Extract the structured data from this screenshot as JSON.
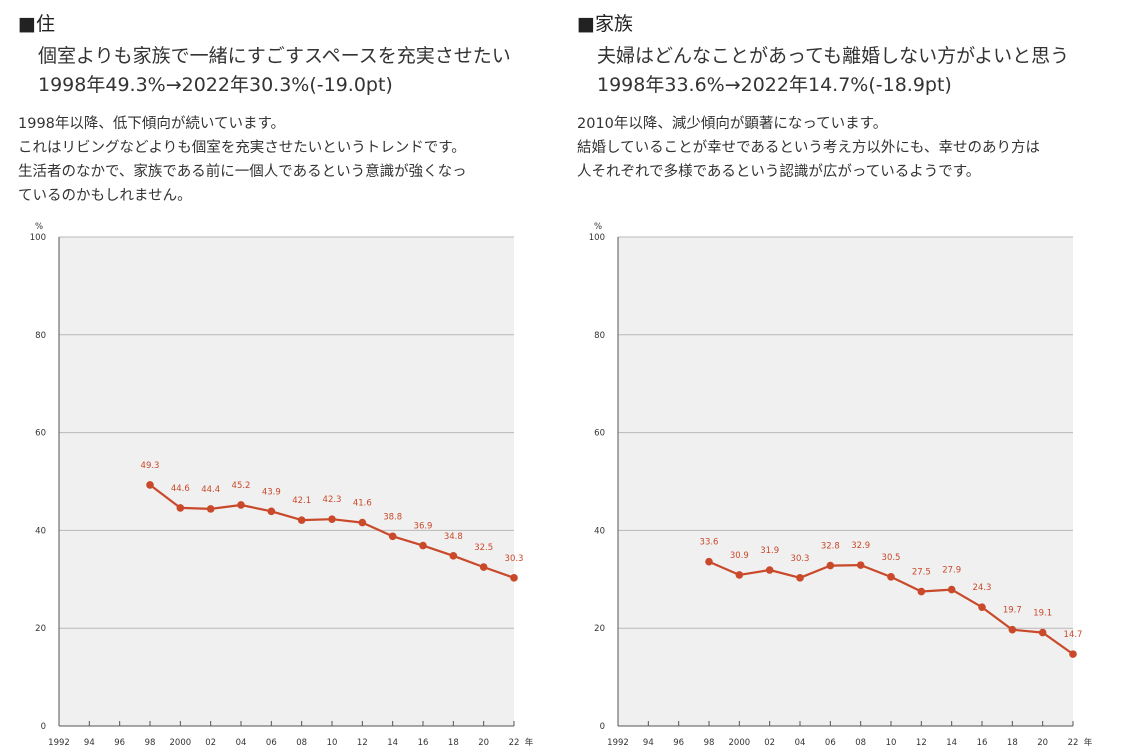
{
  "panels": [
    {
      "heading": "■住",
      "headline1": "個室よりも家族で一緒にすごすスペースを充実させたい",
      "headline2": "1998年49.3%→2022年30.3%(-19.0pt)",
      "description": [
        "1998年以降、低下傾向が続いています。",
        "これはリビングなどよりも個室を充実させたいというトレンドです。",
        "生活者のなかで、家族である前に一個人であるという意識が強くなっ",
        "ているのかもしれません。"
      ]
    },
    {
      "heading": "■家族",
      "headline1": "夫婦はどんなことがあっても離婚しない方がよいと思う",
      "headline2": "1998年33.6%→2022年14.7%(-18.9pt)",
      "description": [
        "2010年以降、減少傾向が顕著になっています。",
        "結婚していることが幸せであるという考え方以外にも、幸せのあり方は",
        "人それぞれで多様であるという認識が広がっているようです。"
      ]
    }
  ],
  "colors": {
    "line": "#c9492a",
    "plot_bg": "#f0f0f0",
    "grid": "#b8b8b8"
  },
  "chart_data": [
    {
      "type": "line",
      "title": "",
      "xlabel": "年",
      "ylabel": "%",
      "ylim": [
        0,
        100
      ],
      "yticks": [
        0,
        20,
        40,
        60,
        80,
        100
      ],
      "xlim": [
        1992,
        2022
      ],
      "xtick_values": [
        1992,
        1994,
        1996,
        1998,
        2000,
        2002,
        2004,
        2006,
        2008,
        2010,
        2012,
        2014,
        2016,
        2018,
        2020,
        2022
      ],
      "xtick_labels": [
        "1992",
        "94",
        "96",
        "98",
        "2000",
        "02",
        "04",
        "06",
        "08",
        "10",
        "12",
        "14",
        "16",
        "18",
        "20",
        "22"
      ],
      "x_unit_label": "年",
      "grid": true,
      "series": [
        {
          "x": [
            1998,
            2000,
            2002,
            2004,
            2006,
            2008,
            2010,
            2012,
            2014,
            2016,
            2018,
            2020,
            2022
          ],
          "values": [
            49.3,
            44.6,
            44.4,
            45.2,
            43.9,
            42.1,
            42.3,
            41.6,
            38.8,
            36.9,
            34.8,
            32.5,
            30.3
          ],
          "labels": [
            "49.3",
            "44.6",
            "44.4",
            "45.2",
            "43.9",
            "42.1",
            "42.3",
            "41.6",
            "38.8",
            "36.9",
            "34.8",
            "32.5",
            "30.3"
          ]
        }
      ]
    },
    {
      "type": "line",
      "title": "",
      "xlabel": "年",
      "ylabel": "%",
      "ylim": [
        0,
        100
      ],
      "yticks": [
        0,
        20,
        40,
        60,
        80,
        100
      ],
      "xlim": [
        1992,
        2022
      ],
      "xtick_values": [
        1992,
        1994,
        1996,
        1998,
        2000,
        2002,
        2004,
        2006,
        2008,
        2010,
        2012,
        2014,
        2016,
        2018,
        2020,
        2022
      ],
      "xtick_labels": [
        "1992",
        "94",
        "96",
        "98",
        "2000",
        "02",
        "04",
        "06",
        "08",
        "10",
        "12",
        "14",
        "16",
        "18",
        "20",
        "22"
      ],
      "x_unit_label": "年",
      "grid": true,
      "series": [
        {
          "x": [
            1998,
            2000,
            2002,
            2004,
            2006,
            2008,
            2010,
            2012,
            2014,
            2016,
            2018,
            2020,
            2022
          ],
          "values": [
            33.6,
            30.9,
            31.9,
            30.3,
            32.8,
            32.9,
            30.5,
            27.5,
            27.9,
            24.3,
            19.7,
            19.1,
            14.7
          ],
          "labels": [
            "33.6",
            "30.9",
            "31.9",
            "30.3",
            "32.8",
            "32.9",
            "30.5",
            "27.5",
            "27.9",
            "24.3",
            "19.7",
            "19.1",
            "14.7"
          ]
        }
      ]
    }
  ]
}
